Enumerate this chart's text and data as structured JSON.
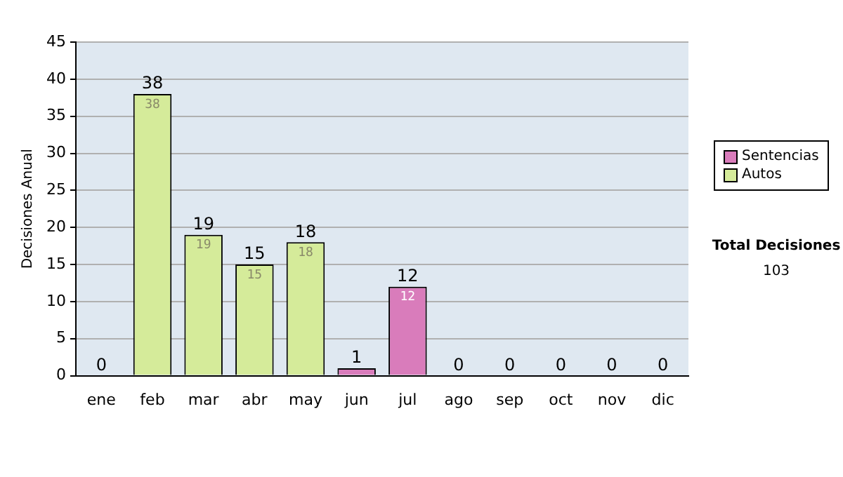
{
  "chart_data": {
    "type": "bar",
    "ylabel": "Decisiones Anual",
    "categories": [
      "ene",
      "feb",
      "mar",
      "abr",
      "may",
      "jun",
      "jul",
      "ago",
      "sep",
      "oct",
      "nov",
      "dic"
    ],
    "stacked": true,
    "series": [
      {
        "name": "Sentencias",
        "color": "#d97cbb",
        "values": [
          0,
          0,
          0,
          0,
          0,
          1,
          12,
          0,
          0,
          0,
          0,
          0
        ],
        "value_labels": [
          null,
          null,
          null,
          null,
          null,
          null,
          "12",
          null,
          null,
          null,
          null,
          null
        ]
      },
      {
        "name": "Autos",
        "color": "#d5eb9a",
        "values": [
          0,
          38,
          19,
          15,
          18,
          0,
          0,
          0,
          0,
          0,
          0,
          0
        ],
        "value_labels": [
          null,
          "38",
          "19",
          "15",
          "18",
          null,
          null,
          null,
          null,
          null,
          null,
          null
        ]
      }
    ],
    "totals": [
      "0",
      "38",
      "19",
      "15",
      "18",
      "1",
      "12",
      "0",
      "0",
      "0",
      "0",
      "0"
    ],
    "ylim": [
      0,
      45
    ],
    "yticks": [
      0,
      5,
      10,
      15,
      20,
      25,
      30,
      35,
      40,
      45
    ],
    "grid": "y",
    "legend": "right",
    "annotations": [
      "Total Decisiones",
      "103"
    ]
  }
}
